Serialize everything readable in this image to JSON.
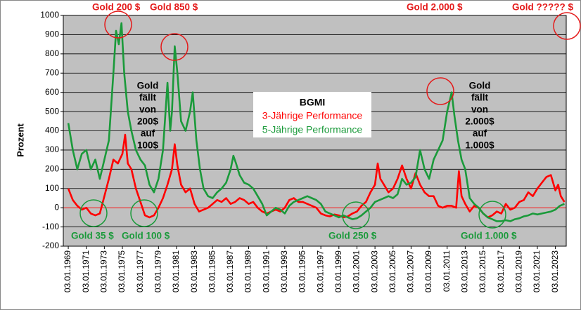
{
  "chart_data": {
    "type": "line",
    "y_label": "Prozent",
    "legend_title": "BGMI",
    "ylim": [
      -200,
      1000
    ],
    "yticks": [
      -200,
      -100,
      0,
      100,
      200,
      300,
      400,
      500,
      600,
      700,
      800,
      900,
      1000
    ],
    "xlim": [
      1968.45,
      2024.2
    ],
    "xticks": [
      {
        "value": 1969,
        "label": "03.01.1969"
      },
      {
        "value": 1971,
        "label": "03.01.1971"
      },
      {
        "value": 1973,
        "label": "03.01.1973"
      },
      {
        "value": 1975,
        "label": "03.01.1975"
      },
      {
        "value": 1977,
        "label": "03.01.1977"
      },
      {
        "value": 1979,
        "label": "03.01.1979"
      },
      {
        "value": 1981,
        "label": "03.01.1981"
      },
      {
        "value": 1983,
        "label": "03.01.1983"
      },
      {
        "value": 1985,
        "label": "03.01.1985"
      },
      {
        "value": 1987,
        "label": "03.01.1987"
      },
      {
        "value": 1989,
        "label": "03.01.1989"
      },
      {
        "value": 1991,
        "label": "03.01.1991"
      },
      {
        "value": 1993,
        "label": "03.01.1993"
      },
      {
        "value": 1995,
        "label": "03.01.1995"
      },
      {
        "value": 1997,
        "label": "03.01.1997"
      },
      {
        "value": 1999,
        "label": "03.01.1999"
      },
      {
        "value": 2001,
        "label": "03.01.2001"
      },
      {
        "value": 2003,
        "label": "03.01.2003"
      },
      {
        "value": 2005,
        "label": "03.01.2005"
      },
      {
        "value": 2007,
        "label": "03.01.2007"
      },
      {
        "value": 2009,
        "label": "03.01.2009"
      },
      {
        "value": 2011,
        "label": "03.01.2011"
      },
      {
        "value": 2013,
        "label": "03.01.2013"
      },
      {
        "value": 2015,
        "label": "03.01.2015"
      },
      {
        "value": 2017,
        "label": "03.01.2017"
      },
      {
        "value": 2019,
        "label": "03.01.2019"
      },
      {
        "value": 2021,
        "label": "03.01.2021"
      },
      {
        "value": 2023,
        "label": "03.01.2023"
      }
    ],
    "grid": true,
    "series": [
      {
        "name": "3-Jährige Performance",
        "color": "#ff0000",
        "x": [
          1969,
          1969.5,
          1970,
          1970.5,
          1971,
          1971.5,
          1972,
          1972.5,
          1973,
          1973.5,
          1974,
          1974.5,
          1975,
          1975.3,
          1975.6,
          1976,
          1976.5,
          1977,
          1977.5,
          1978,
          1978.5,
          1979,
          1979.5,
          1980,
          1980.5,
          1980.8,
          1981.1,
          1981.5,
          1982,
          1982.5,
          1983,
          1983.5,
          1984,
          1984.5,
          1985,
          1985.5,
          1986,
          1986.5,
          1987,
          1987.5,
          1988,
          1988.5,
          1989,
          1989.5,
          1990,
          1990.5,
          1991,
          1991.5,
          1992,
          1992.5,
          1993,
          1993.5,
          1994,
          1994.5,
          1995,
          1995.5,
          1996,
          1996.5,
          1997,
          1997.5,
          1998,
          1998.5,
          1999,
          1999.5,
          2000,
          2000.5,
          2001,
          2001.5,
          2002,
          2002.5,
          2003,
          2003.3,
          2003.6,
          2004,
          2004.5,
          2005,
          2005.5,
          2006,
          2006.5,
          2007,
          2007.5,
          2008,
          2008.5,
          2009,
          2009.5,
          2010,
          2010.5,
          2011,
          2011.5,
          2012,
          2012.3,
          2012.6,
          2013,
          2013.5,
          2014,
          2014.5,
          2015,
          2015.5,
          2016,
          2016.5,
          2017,
          2017.5,
          2018,
          2018.5,
          2019,
          2019.5,
          2020,
          2020.5,
          2021,
          2021.5,
          2022,
          2022.5,
          2023,
          2023.3,
          2023.6,
          2024
        ],
        "values": [
          100,
          40,
          10,
          -10,
          0,
          -30,
          -40,
          -30,
          60,
          150,
          250,
          230,
          280,
          380,
          230,
          200,
          100,
          30,
          -40,
          -50,
          -40,
          0,
          50,
          120,
          200,
          330,
          220,
          120,
          80,
          100,
          20,
          -20,
          -10,
          0,
          20,
          40,
          30,
          50,
          20,
          30,
          50,
          40,
          20,
          30,
          0,
          -20,
          -30,
          -20,
          -10,
          -20,
          0,
          40,
          50,
          30,
          30,
          20,
          10,
          0,
          -30,
          -40,
          -45,
          -35,
          -40,
          -50,
          -45,
          -30,
          -20,
          10,
          30,
          80,
          120,
          230,
          150,
          120,
          80,
          100,
          150,
          220,
          150,
          100,
          180,
          120,
          80,
          60,
          60,
          10,
          0,
          10,
          10,
          0,
          190,
          60,
          20,
          -20,
          10,
          0,
          -30,
          -50,
          -40,
          -20,
          -30,
          20,
          -10,
          0,
          30,
          40,
          80,
          60,
          100,
          130,
          160,
          170,
          90,
          120,
          60,
          30
        ]
      },
      {
        "name": "5-Jährige Performance",
        "color": "#1a9a3a",
        "x": [
          1969,
          1969.5,
          1970,
          1970.5,
          1971,
          1971.5,
          1972,
          1972.5,
          1973,
          1973.5,
          1974,
          1974.3,
          1974.6,
          1974.9,
          1975.2,
          1975.6,
          1976,
          1976.5,
          1977,
          1977.5,
          1978,
          1978.5,
          1979,
          1979.5,
          1980,
          1980.3,
          1980.5,
          1980.8,
          1981.1,
          1981.5,
          1982,
          1982.5,
          1982.8,
          1983.2,
          1983.6,
          1984,
          1984.5,
          1985,
          1985.5,
          1986,
          1986.5,
          1987,
          1987.3,
          1987.6,
          1988,
          1988.5,
          1989,
          1989.5,
          1990,
          1990.5,
          1991,
          1991.5,
          1992,
          1992.5,
          1993,
          1993.5,
          1994,
          1994.5,
          1995,
          1995.5,
          1996,
          1996.5,
          1997,
          1997.5,
          1998,
          1998.5,
          1999,
          1999.5,
          2000,
          2000.5,
          2001,
          2001.5,
          2002,
          2002.5,
          2003,
          2003.5,
          2004,
          2004.5,
          2005,
          2005.5,
          2006,
          2006.5,
          2007,
          2007.5,
          2008,
          2008.5,
          2009,
          2009.5,
          2010,
          2010.5,
          2011,
          2011.5,
          2011.8,
          2012.2,
          2012.6,
          2013,
          2013.5,
          2014,
          2014.5,
          2015,
          2015.5,
          2016,
          2016.5,
          2017,
          2017.5,
          2018,
          2018.5,
          2019,
          2019.5,
          2020,
          2020.5,
          2021,
          2021.5,
          2022,
          2022.5,
          2023,
          2023.5,
          2024
        ],
        "values": [
          440,
          300,
          200,
          280,
          300,
          200,
          250,
          150,
          250,
          350,
          700,
          920,
          850,
          960,
          700,
          500,
          400,
          300,
          250,
          220,
          120,
          80,
          150,
          300,
          650,
          400,
          500,
          840,
          700,
          450,
          400,
          500,
          600,
          350,
          200,
          100,
          60,
          50,
          80,
          100,
          130,
          200,
          270,
          230,
          170,
          130,
          120,
          100,
          60,
          20,
          -40,
          -20,
          0,
          -10,
          -30,
          10,
          30,
          40,
          50,
          60,
          50,
          40,
          20,
          -20,
          -30,
          -40,
          -50,
          -40,
          -50,
          -60,
          -55,
          -40,
          -20,
          0,
          30,
          40,
          50,
          60,
          50,
          70,
          150,
          120,
          130,
          160,
          300,
          200,
          150,
          250,
          300,
          350,
          500,
          600,
          480,
          350,
          250,
          200,
          50,
          20,
          0,
          -30,
          -50,
          -60,
          -70,
          -70,
          -65,
          -70,
          -60,
          -55,
          -45,
          -40,
          -30,
          -35,
          -30,
          -25,
          -20,
          -10,
          10,
          20
        ]
      }
    ],
    "annotations": {
      "top_red": [
        "Gold 200 $",
        "Gold 850 $",
        "Gold 2.000 $",
        "Gold ????? $"
      ],
      "bottom_green": [
        "Gold 35 $",
        "Gold 100 $",
        "Gold 250 $",
        "Gold 1.000 $"
      ],
      "fall_1": [
        "Gold",
        "fällt",
        "von",
        "200$",
        "auf",
        "100$"
      ],
      "fall_2": [
        "Gold",
        "fällt",
        "von",
        "2.000$",
        "auf",
        "1.000$"
      ]
    }
  }
}
